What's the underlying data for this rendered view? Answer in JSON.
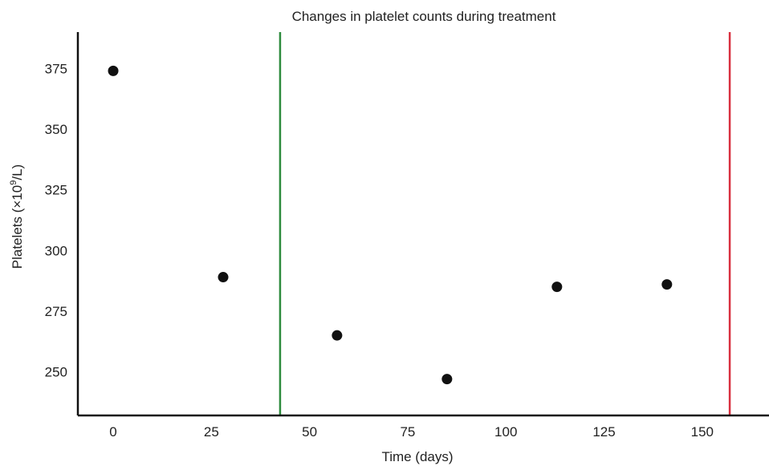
{
  "chart_data": {
    "type": "scatter",
    "title": "Changes in platelet counts during treatment",
    "xlabel": "Time (days)",
    "ylabel": {
      "prefix": "Platelets (×10",
      "sup": "9",
      "suffix": "/L)"
    },
    "xlim": [
      -9,
      167
    ],
    "ylim": [
      232,
      390
    ],
    "x_ticks": [
      0,
      25,
      50,
      75,
      100,
      125,
      150
    ],
    "y_ticks": [
      250,
      275,
      300,
      325,
      350,
      375
    ],
    "grid": false,
    "legend": "none",
    "series": [
      {
        "x": [
          0,
          28,
          57,
          85,
          113,
          141
        ],
        "y": [
          374,
          289,
          265,
          247,
          285,
          286
        ],
        "color": "#111111"
      }
    ],
    "vertical_lines": [
      {
        "x": 42.5,
        "color": "#2e8b3e"
      },
      {
        "x": 157,
        "color": "#d9303f"
      }
    ],
    "axis_color": "#111111"
  }
}
